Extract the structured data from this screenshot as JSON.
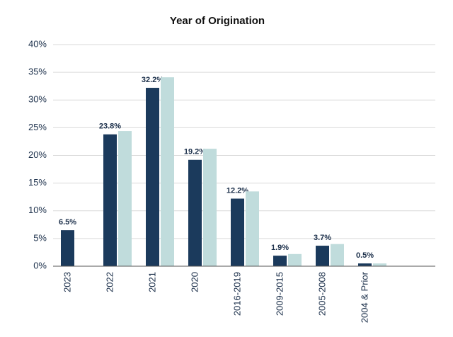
{
  "chart_data": {
    "type": "bar",
    "title": "Year of Origination",
    "categories": [
      "2023",
      "2022",
      "2021",
      "2020",
      "2016-2019",
      "2009-2015",
      "2005-2008",
      "2004 & Prior"
    ],
    "series": [
      {
        "color": "#1b3a5c",
        "values": [
          6.5,
          23.8,
          32.2,
          19.2,
          12.2,
          1.9,
          3.7,
          0.5
        ],
        "value_labels": [
          "6.5%",
          "23.8%",
          "32.2%",
          "19.2%",
          "12.2%",
          "1.9%",
          "3.7%",
          "0.5%"
        ]
      },
      {
        "color": "#c0dcdc",
        "values": [
          null,
          24.4,
          34.1,
          21.2,
          13.5,
          2.2,
          4.0,
          0.5
        ]
      }
    ],
    "ylim": [
      0,
      40
    ],
    "yticks": [
      {
        "value": 0,
        "label": "0%"
      },
      {
        "value": 5,
        "label": "5%"
      },
      {
        "value": 10,
        "label": "10%"
      },
      {
        "value": 15,
        "label": "15%"
      },
      {
        "value": 20,
        "label": "20%"
      },
      {
        "value": 25,
        "label": "25%"
      },
      {
        "value": 30,
        "label": "30%"
      },
      {
        "value": 35,
        "label": "35%"
      },
      {
        "value": 40,
        "label": "40%"
      }
    ],
    "grid": true
  }
}
